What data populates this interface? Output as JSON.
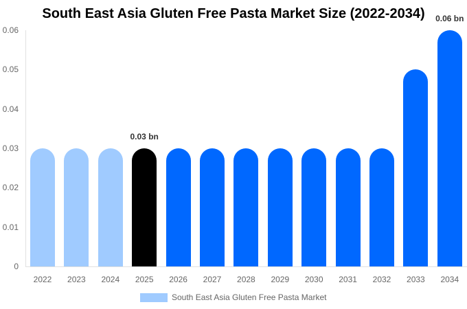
{
  "chart_data": {
    "type": "bar",
    "title": "South East Asia Gluten Free Pasta Market Size (2022-2034)",
    "xlabel": "",
    "ylabel": "",
    "ylim": [
      0,
      0.06
    ],
    "yticks": [
      "0",
      "0.01",
      "0.02",
      "0.03",
      "0.04",
      "0.05",
      "0.06"
    ],
    "categories": [
      "2022",
      "2023",
      "2024",
      "2025",
      "2026",
      "2027",
      "2028",
      "2029",
      "2030",
      "2031",
      "2032",
      "2033",
      "2034"
    ],
    "series": [
      {
        "name": "South East Asia Gluten Free Pasta Market",
        "values": [
          0.03,
          0.03,
          0.03,
          0.03,
          0.03,
          0.03,
          0.03,
          0.03,
          0.03,
          0.03,
          0.03,
          0.05,
          0.06
        ]
      }
    ],
    "bar_colors": [
      "#a0cbff",
      "#a0cbff",
      "#a0cbff",
      "#000000",
      "#0068ff",
      "#0068ff",
      "#0068ff",
      "#0068ff",
      "#0068ff",
      "#0068ff",
      "#0068ff",
      "#0068ff",
      "#0068ff"
    ],
    "annotations": [
      {
        "category": "2025",
        "text": "0.03 bn"
      },
      {
        "category": "2034",
        "text": "0.06 bn"
      }
    ],
    "legend": {
      "position": "bottom",
      "entries": [
        "South East Asia Gluten Free Pasta Market"
      ],
      "color": "#a0cbff"
    },
    "grid": false
  }
}
